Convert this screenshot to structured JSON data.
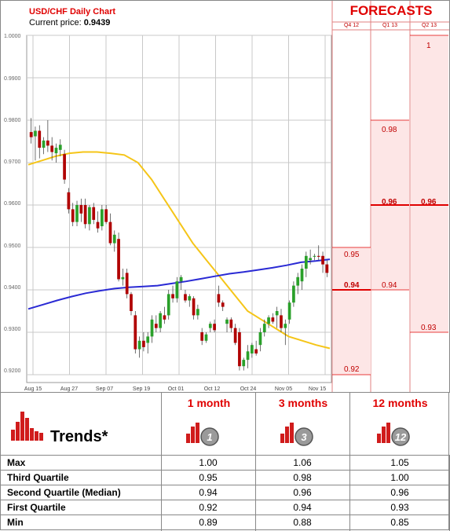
{
  "header": {
    "title": "USD/CHF Daily Chart",
    "price_label": "Current price:",
    "price_value": "0.9439"
  },
  "forecasts": {
    "title": "FORECASTS",
    "quarters": [
      "Q4 12",
      "Q1 13",
      "Q2 13"
    ],
    "columns": [
      {
        "quarter": "Q4 12",
        "high": "0.95",
        "mid": "0.94",
        "low": "0.92",
        "high_value": 0.95,
        "mid_value": 0.94,
        "low_value": 0.92
      },
      {
        "quarter": "Q1 13",
        "high": "0.98",
        "mid": "0.96",
        "low": "0.94",
        "high_value": 0.98,
        "mid_value": 0.96,
        "low_value": 0.94
      },
      {
        "quarter": "Q2 13",
        "high": "1",
        "mid": "0.96",
        "low": "0.93",
        "high_value": 1.0,
        "mid_value": 0.96,
        "low_value": 0.93
      }
    ]
  },
  "chart_data": {
    "type": "candlestick",
    "title": "USD/CHF Daily Chart",
    "ylim": [
      0.92,
      1.0
    ],
    "yticks": [
      "1.0000",
      "0.9900",
      "0.9800",
      "0.9700",
      "0.9600",
      "0.9500",
      "0.9400",
      "0.9300",
      "0.9200"
    ],
    "ytick_values": [
      1.0,
      0.99,
      0.98,
      0.97,
      0.96,
      0.95,
      0.94,
      0.93,
      0.92
    ],
    "xticks": [
      "Aug 15",
      "Aug 27",
      "Sep 07",
      "Sep 19",
      "Oct 01",
      "Oct 12",
      "Oct 24",
      "Nov 05",
      "Nov 15"
    ],
    "grid": true,
    "candles": [
      {
        "o": 0.9772,
        "h": 0.9805,
        "l": 0.9745,
        "c": 0.976
      },
      {
        "o": 0.9762,
        "h": 0.9785,
        "l": 0.9705,
        "c": 0.9775
      },
      {
        "o": 0.9775,
        "h": 0.9788,
        "l": 0.971,
        "c": 0.9735
      },
      {
        "o": 0.9735,
        "h": 0.976,
        "l": 0.972,
        "c": 0.9752
      },
      {
        "o": 0.9752,
        "h": 0.98,
        "l": 0.9725,
        "c": 0.974
      },
      {
        "o": 0.974,
        "h": 0.976,
        "l": 0.9705,
        "c": 0.9725
      },
      {
        "o": 0.9722,
        "h": 0.9745,
        "l": 0.97,
        "c": 0.9735
      },
      {
        "o": 0.973,
        "h": 0.9755,
        "l": 0.9715,
        "c": 0.9742
      },
      {
        "o": 0.972,
        "h": 0.973,
        "l": 0.965,
        "c": 0.966
      },
      {
        "o": 0.963,
        "h": 0.964,
        "l": 0.958,
        "c": 0.959
      },
      {
        "o": 0.959,
        "h": 0.9605,
        "l": 0.955,
        "c": 0.956
      },
      {
        "o": 0.956,
        "h": 0.961,
        "l": 0.955,
        "c": 0.96
      },
      {
        "o": 0.96,
        "h": 0.9615,
        "l": 0.956,
        "c": 0.958
      },
      {
        "o": 0.96,
        "h": 0.9615,
        "l": 0.9545,
        "c": 0.9555
      },
      {
        "o": 0.9555,
        "h": 0.96,
        "l": 0.954,
        "c": 0.9595
      },
      {
        "o": 0.9595,
        "h": 0.9605,
        "l": 0.9555,
        "c": 0.9565
      },
      {
        "o": 0.956,
        "h": 0.9585,
        "l": 0.9535,
        "c": 0.9545
      },
      {
        "o": 0.955,
        "h": 0.96,
        "l": 0.954,
        "c": 0.959
      },
      {
        "o": 0.959,
        "h": 0.96,
        "l": 0.9555,
        "c": 0.956
      },
      {
        "o": 0.956,
        "h": 0.958,
        "l": 0.9505,
        "c": 0.951
      },
      {
        "o": 0.951,
        "h": 0.954,
        "l": 0.949,
        "c": 0.953
      },
      {
        "o": 0.952,
        "h": 0.9535,
        "l": 0.942,
        "c": 0.9425
      },
      {
        "o": 0.9425,
        "h": 0.945,
        "l": 0.941,
        "c": 0.943
      },
      {
        "o": 0.944,
        "h": 0.945,
        "l": 0.938,
        "c": 0.939
      },
      {
        "o": 0.939,
        "h": 0.9395,
        "l": 0.934,
        "c": 0.935
      },
      {
        "o": 0.934,
        "h": 0.935,
        "l": 0.925,
        "c": 0.926
      },
      {
        "o": 0.926,
        "h": 0.929,
        "l": 0.924,
        "c": 0.928
      },
      {
        "o": 0.928,
        "h": 0.93,
        "l": 0.9255,
        "c": 0.9265
      },
      {
        "o": 0.9275,
        "h": 0.93,
        "l": 0.925,
        "c": 0.929
      },
      {
        "o": 0.929,
        "h": 0.934,
        "l": 0.9275,
        "c": 0.933
      },
      {
        "o": 0.932,
        "h": 0.934,
        "l": 0.93,
        "c": 0.931
      },
      {
        "o": 0.931,
        "h": 0.935,
        "l": 0.93,
        "c": 0.9345
      },
      {
        "o": 0.934,
        "h": 0.936,
        "l": 0.932,
        "c": 0.933
      },
      {
        "o": 0.934,
        "h": 0.94,
        "l": 0.933,
        "c": 0.939
      },
      {
        "o": 0.939,
        "h": 0.941,
        "l": 0.937,
        "c": 0.938
      },
      {
        "o": 0.938,
        "h": 0.943,
        "l": 0.937,
        "c": 0.942
      },
      {
        "o": 0.942,
        "h": 0.9435,
        "l": 0.94,
        "c": 0.943
      },
      {
        "o": 0.939,
        "h": 0.94,
        "l": 0.937,
        "c": 0.9375
      },
      {
        "o": 0.9375,
        "h": 0.939,
        "l": 0.936,
        "c": 0.9385
      },
      {
        "o": 0.938,
        "h": 0.9385,
        "l": 0.933,
        "c": 0.934
      },
      {
        "o": 0.934,
        "h": 0.9365,
        "l": 0.933,
        "c": 0.9355
      },
      {
        "o": 0.93,
        "h": 0.931,
        "l": 0.927,
        "c": 0.928
      },
      {
        "o": 0.928,
        "h": 0.93,
        "l": 0.9275,
        "c": 0.9295
      },
      {
        "o": 0.931,
        "h": 0.9325,
        "l": 0.93,
        "c": 0.932
      },
      {
        "o": 0.932,
        "h": 0.933,
        "l": 0.93,
        "c": 0.9305
      },
      {
        "o": 0.939,
        "h": 0.941,
        "l": 0.936,
        "c": 0.937
      },
      {
        "o": 0.937,
        "h": 0.9375,
        "l": 0.935,
        "c": 0.936
      },
      {
        "o": 0.932,
        "h": 0.9335,
        "l": 0.93,
        "c": 0.933
      },
      {
        "o": 0.933,
        "h": 0.9335,
        "l": 0.93,
        "c": 0.931
      },
      {
        "o": 0.931,
        "h": 0.932,
        "l": 0.927,
        "c": 0.9275
      },
      {
        "o": 0.93,
        "h": 0.931,
        "l": 0.921,
        "c": 0.922
      },
      {
        "o": 0.922,
        "h": 0.924,
        "l": 0.921,
        "c": 0.9235
      },
      {
        "o": 0.9235,
        "h": 0.927,
        "l": 0.9215,
        "c": 0.9255
      },
      {
        "o": 0.925,
        "h": 0.9275,
        "l": 0.924,
        "c": 0.927
      },
      {
        "o": 0.926,
        "h": 0.928,
        "l": 0.9245,
        "c": 0.925
      },
      {
        "o": 0.927,
        "h": 0.931,
        "l": 0.9255,
        "c": 0.93
      },
      {
        "o": 0.93,
        "h": 0.933,
        "l": 0.929,
        "c": 0.932
      },
      {
        "o": 0.932,
        "h": 0.934,
        "l": 0.931,
        "c": 0.9335
      },
      {
        "o": 0.9335,
        "h": 0.9345,
        "l": 0.932,
        "c": 0.9325
      },
      {
        "o": 0.934,
        "h": 0.936,
        "l": 0.931,
        "c": 0.935
      },
      {
        "o": 0.934,
        "h": 0.9355,
        "l": 0.93,
        "c": 0.931
      },
      {
        "o": 0.931,
        "h": 0.933,
        "l": 0.927,
        "c": 0.932
      },
      {
        "o": 0.933,
        "h": 0.9375,
        "l": 0.932,
        "c": 0.937
      },
      {
        "o": 0.937,
        "h": 0.942,
        "l": 0.936,
        "c": 0.941
      },
      {
        "o": 0.941,
        "h": 0.944,
        "l": 0.939,
        "c": 0.943
      },
      {
        "o": 0.942,
        "h": 0.946,
        "l": 0.94,
        "c": 0.945
      },
      {
        "o": 0.945,
        "h": 0.949,
        "l": 0.943,
        "c": 0.948
      },
      {
        "o": 0.947,
        "h": 0.9495,
        "l": 0.946,
        "c": 0.9475
      },
      {
        "o": 0.9478,
        "h": 0.9485,
        "l": 0.947,
        "c": 0.948
      },
      {
        "o": 0.948,
        "h": 0.9505,
        "l": 0.947,
        "c": 0.9478
      },
      {
        "o": 0.948,
        "h": 0.949,
        "l": 0.944,
        "c": 0.946
      },
      {
        "o": 0.946,
        "h": 0.947,
        "l": 0.943,
        "c": 0.944
      }
    ],
    "series": [
      {
        "type": "line",
        "color": "#f5c518",
        "values": [
          0.9695,
          0.9705,
          0.9715,
          0.9722,
          0.9725,
          0.9725,
          0.9722,
          0.9718,
          0.97,
          0.966,
          0.961,
          0.956,
          0.951,
          0.947,
          0.943,
          0.939,
          0.935,
          0.933,
          0.931,
          0.929,
          0.928,
          0.927,
          0.9262
        ]
      },
      {
        "type": "line",
        "color": "#2a2ad4",
        "values": [
          0.9355,
          0.9365,
          0.9375,
          0.9384,
          0.9392,
          0.9398,
          0.9403,
          0.9406,
          0.9408,
          0.941,
          0.9415,
          0.942,
          0.9426,
          0.9432,
          0.9438,
          0.9442,
          0.9447,
          0.9452,
          0.9458,
          0.9465,
          0.9468,
          0.9472
        ]
      }
    ],
    "colors": {
      "up": "#2aa02a",
      "down": "#b00000",
      "forecast_line": "#e00000",
      "forecast_fill": "#fde6e6"
    }
  },
  "trends": {
    "label": "Trends*",
    "horizons": [
      {
        "label": "1 month",
        "badge": "1"
      },
      {
        "label": "3 months",
        "badge": "3"
      },
      {
        "label": "12 months",
        "badge": "12"
      }
    ],
    "rows": [
      {
        "name": "Max",
        "values": [
          "1.00",
          "1.06",
          "1.05"
        ]
      },
      {
        "name": "Third Quartile",
        "values": [
          "0.95",
          "0.98",
          "1.00"
        ]
      },
      {
        "name": "Second Quartile (Median)",
        "values": [
          "0.94",
          "0.96",
          "0.96"
        ]
      },
      {
        "name": "First Quartile",
        "values": [
          "0.92",
          "0.94",
          "0.93"
        ]
      },
      {
        "name": "Min",
        "values": [
          "0.89",
          "0.88",
          "0.85"
        ]
      }
    ]
  }
}
